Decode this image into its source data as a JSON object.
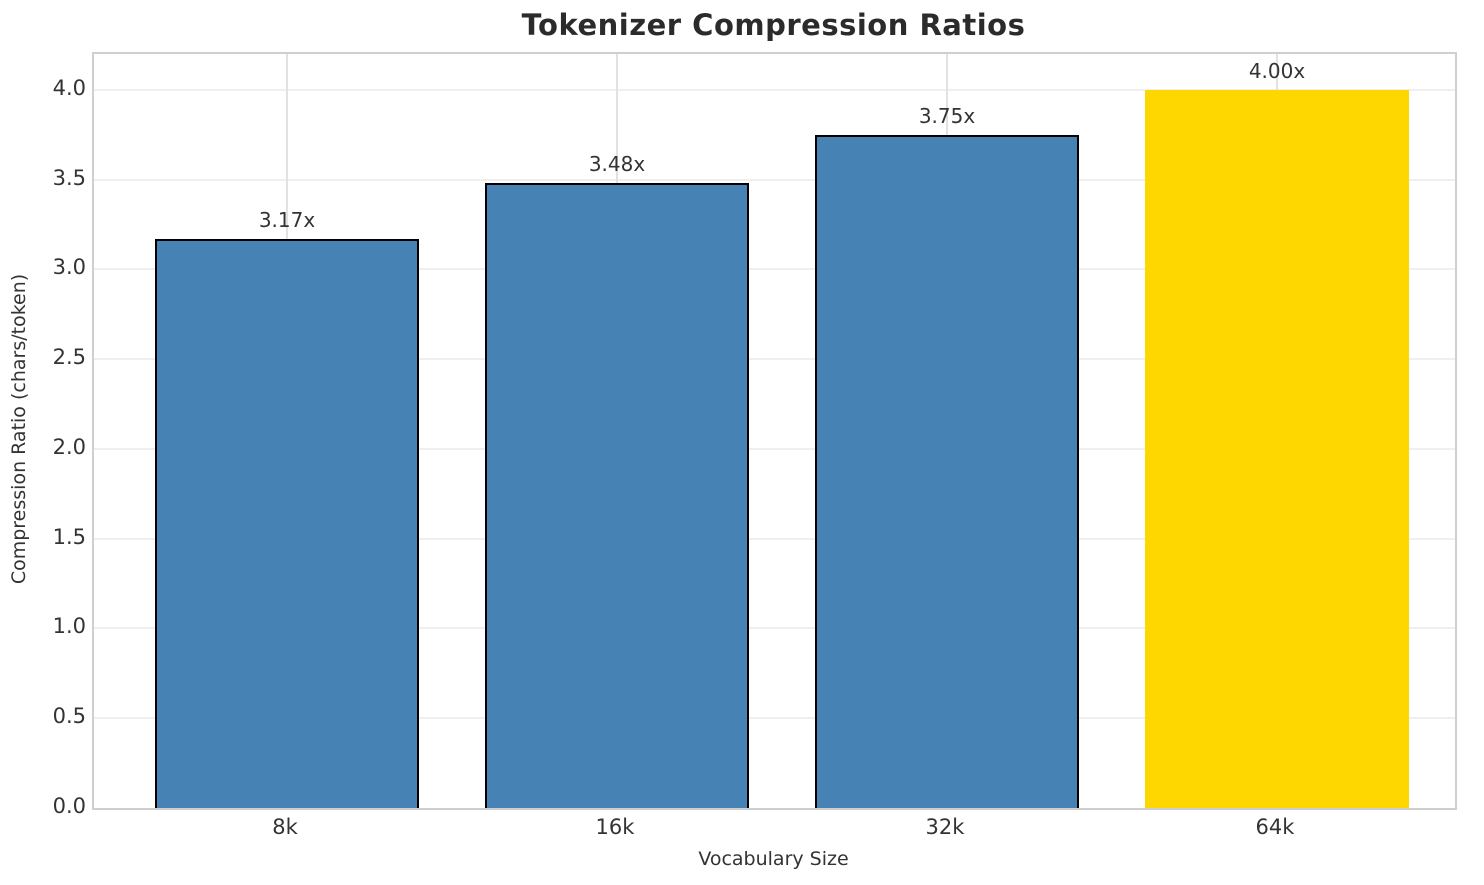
{
  "chart_data": {
    "type": "bar",
    "title": "Tokenizer Compression Ratios",
    "xlabel": "Vocabulary Size",
    "ylabel": "Compression Ratio (chars/token)",
    "categories": [
      "8k",
      "16k",
      "32k",
      "64k"
    ],
    "values": [
      3.17,
      3.48,
      3.75,
      4.0
    ],
    "bar_labels": [
      "3.17x",
      "3.48x",
      "3.75x",
      "4.00x"
    ],
    "bar_colors": [
      "#4682B4",
      "#4682B4",
      "#4682B4",
      "#FFD700"
    ],
    "bar_edge_colors": [
      "#000000",
      "#000000",
      "#000000",
      "none"
    ],
    "highlight_category": "64k",
    "ylim": [
      0,
      4.2
    ],
    "yticks": [
      0.0,
      0.5,
      1.0,
      1.5,
      2.0,
      2.5,
      3.0,
      3.5,
      4.0
    ],
    "ytick_labels": [
      "0.0",
      "0.5",
      "1.0",
      "1.5",
      "2.0",
      "2.5",
      "3.0",
      "3.5",
      "4.0"
    ],
    "grid": "on",
    "legend": "none",
    "colors": {
      "bar_default": "#4682B4",
      "bar_highlight": "#FFD700",
      "bar_edge": "#000000",
      "grid_horizontal": "#efefef",
      "grid_vertical": "#e2e2e2",
      "plot_border": "#cfcfcf",
      "text": "#333333",
      "title_text": "#2b2b2b"
    }
  }
}
